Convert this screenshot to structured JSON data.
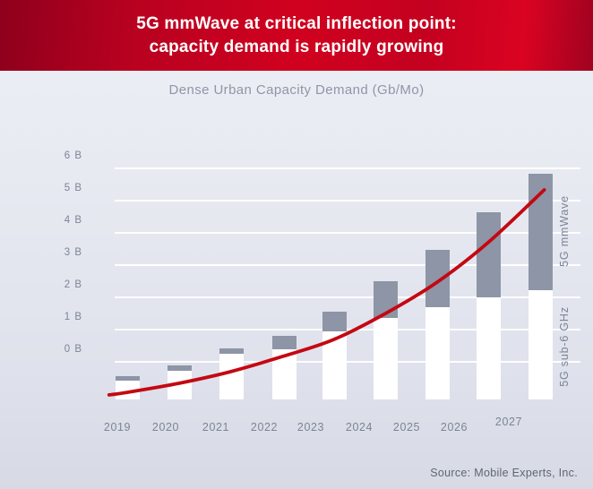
{
  "header": {
    "line1": "5G mmWave at critical inflection point:",
    "line2": "capacity demand is rapidly growing"
  },
  "subtitle": "Dense Urban Capacity Demand (Gb/Mo)",
  "source": "Source: Mobile Experts, Inc.",
  "colors": {
    "header_red_dark": "#8e001c",
    "header_red_bright": "#d0011f",
    "bar_white": "#ffffff",
    "bar_gray": "#8d95a6",
    "trend_red": "#c40812",
    "grid_white": "#ffffff",
    "axis_text": "#7b8495",
    "subtitle_text": "#9096a6",
    "source_text": "#5f6675"
  },
  "chart_data": {
    "type": "bar",
    "stacked": true,
    "title": "Dense Urban Capacity Demand (Gb/Mo)",
    "categories": [
      "2019",
      "2020",
      "2021",
      "2022",
      "2023",
      "2024",
      "2025",
      "2026",
      "2027"
    ],
    "series": [
      {
        "name": "5G sub-6 GHz",
        "color": "#ffffff",
        "values": [
          0.57,
          0.9,
          1.42,
          1.56,
          2.11,
          2.53,
          2.86,
          3.17,
          3.4
        ]
      },
      {
        "name": "5G mmWave",
        "color": "#8d95a6",
        "values": [
          0.15,
          0.15,
          0.17,
          0.42,
          0.61,
          1.15,
          1.78,
          2.64,
          3.61
        ]
      }
    ],
    "y_axis": {
      "tick_labels": [
        "6 B",
        "5 B",
        "4 B",
        "3 B",
        "2 B",
        "1 B",
        "0 B"
      ],
      "tick_values": [
        6,
        5,
        4,
        3,
        2,
        1,
        0
      ],
      "unit": "B (Gb/Mo)"
    },
    "right_labels": [
      {
        "text": "5G mmWave"
      },
      {
        "text": "5G sub-6 GHz"
      }
    ],
    "baseline_offset_B": -1.15,
    "grid": true,
    "legend_position": "right-rotated",
    "trend_line": {
      "name": "exponential capacity demand trend",
      "color": "#c40812",
      "points_B": [
        [
          -0.35,
          -1.04
        ],
        [
          0,
          -0.96
        ],
        [
          1,
          -0.68
        ],
        [
          2,
          -0.32
        ],
        [
          3,
          0.15
        ],
        [
          4,
          0.68
        ],
        [
          5,
          1.49
        ],
        [
          6,
          2.46
        ],
        [
          7,
          3.71
        ],
        [
          8.07,
          5.32
        ]
      ],
      "x_unit": "years since 2019 (bar index)",
      "y_unit": "B vs labeled axis"
    }
  }
}
